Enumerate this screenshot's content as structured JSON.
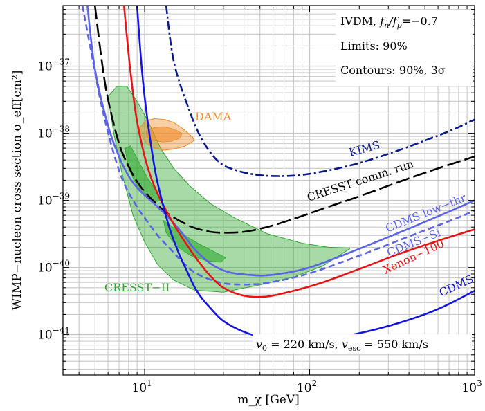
{
  "chart_data": {
    "type": "line",
    "xlabel": "m_χ [GeV]",
    "ylabel": "WIMP−nucleon cross section σ_eff[cm²]",
    "x_scale": "log",
    "y_scale": "log",
    "xlim": [
      3.2,
      1000
    ],
    "ylim": [
      2.5e-42,
      8e-37
    ],
    "grid": true,
    "x_ticks": [
      {
        "v": 10,
        "label": "10"
      },
      {
        "v": 100,
        "label": "10"
      },
      {
        "v": 1000,
        "label": "10"
      }
    ],
    "x_tick_exponents": [
      "1",
      "2",
      "3"
    ],
    "y_ticks": [
      {
        "v": 1e-41,
        "exp": "−41"
      },
      {
        "v": 1e-40,
        "exp": "−40"
      },
      {
        "v": 1e-39,
        "exp": "−39"
      },
      {
        "v": 1e-38,
        "exp": "−38"
      },
      {
        "v": 1e-37,
        "exp": "−37"
      }
    ],
    "y_tick_base": "10",
    "info_box": {
      "line1_prefix": "IVDM, ",
      "line1_ratio": "f",
      "line1_n": "n",
      "line1_slash": "/f",
      "line1_p": "p",
      "line1_value": "=−0.7",
      "line2": "Limits: 90%",
      "line3": "Contours: 90%, 3σ"
    },
    "velocity_note": {
      "v0": "v",
      "v0_sub": "0",
      "v0_val": " = 220 km/s, ",
      "vesc": "v",
      "vesc_sub": "esc",
      "vesc_val": " = 550 km/s"
    },
    "series": [
      {
        "name": "KIMS",
        "color": "#0a1a8c",
        "style": "dashdot",
        "x": [
          13.5,
          15,
          18,
          22,
          28,
          36,
          48,
          65,
          90,
          130,
          200,
          320,
          500,
          750,
          1000
        ],
        "y": [
          8e-37,
          1.2e-37,
          2.8e-38,
          8.5e-39,
          3.8e-39,
          2.8e-39,
          2.4e-39,
          2.3e-39,
          2.4e-39,
          2.8e-39,
          3.6e-39,
          5.2e-39,
          7.8e-39,
          1.15e-38,
          1.6e-38
        ]
      },
      {
        "name": "CRESST comm. run",
        "color": "#000000",
        "style": "longdash",
        "x": [
          5.0,
          5.5,
          6,
          7,
          8,
          9,
          10,
          12,
          14,
          17,
          20,
          25,
          30,
          40,
          55,
          80,
          120,
          200,
          350,
          600,
          1000
        ],
        "y": [
          8e-37,
          1.2e-37,
          3.2e-38,
          7e-39,
          3.2e-39,
          1.9e-39,
          1.35e-39,
          8.5e-40,
          6.2e-40,
          4.7e-40,
          3.9e-40,
          3.4e-40,
          3.3e-40,
          3.4e-40,
          4e-40,
          5.3e-40,
          7.5e-40,
          1.15e-39,
          1.9e-39,
          3e-39,
          4.5e-39
        ]
      },
      {
        "name": "CDMS low−thr",
        "color": "#5a64e6",
        "style": "solid",
        "x": [
          4.5,
          5,
          6,
          7,
          8,
          9,
          10,
          12,
          14,
          17,
          20,
          25,
          32,
          45,
          60,
          100,
          200,
          400,
          700,
          1000
        ],
        "y": [
          8e-37,
          9e-38,
          1.3e-38,
          4.5e-39,
          2.3e-39,
          1.55e-39,
          1.2e-39,
          8e-40,
          5.5e-40,
          3.2e-40,
          1.9e-40,
          1.15e-40,
          8.6e-41,
          7.7e-41,
          7.8e-41,
          1e-40,
          1.9e-40,
          3.8e-40,
          6.8e-40,
          1e-39
        ]
      },
      {
        "name": "CDMS−Si",
        "color": "#5a64e6",
        "style": "dashed",
        "x": [
          4.2,
          4.8,
          5.5,
          6.5,
          7.5,
          9,
          10,
          12,
          14,
          17,
          20,
          25,
          32,
          45,
          60,
          100,
          200,
          400,
          700,
          1000
        ],
        "y": [
          8e-37,
          1.4e-37,
          2.5e-38,
          5e-39,
          1.8e-39,
          8e-40,
          5.5e-40,
          3e-40,
          2e-40,
          1.2e-40,
          8.5e-41,
          6.6e-41,
          5.7e-41,
          5.6e-41,
          6.1e-41,
          8.2e-41,
          1.5e-40,
          2.9e-40,
          4.9e-40,
          7e-40
        ]
      },
      {
        "name": "Xenon−100",
        "color": "#e61414",
        "style": "solid",
        "x": [
          7.5,
          8,
          8.5,
          9,
          10,
          11,
          12,
          14,
          16,
          18,
          20,
          22,
          25,
          30,
          40,
          55,
          80,
          120,
          200,
          350,
          600,
          1000
        ],
        "y": [
          8e-37,
          1.5e-37,
          4e-38,
          1.5e-38,
          4.5e-39,
          2.1e-39,
          1.25e-39,
          6e-40,
          3.4e-40,
          2.2e-40,
          1.5e-40,
          1.1e-40,
          7.5e-41,
          5e-41,
          3.8e-41,
          3.7e-41,
          4.5e-41,
          6e-41,
          9.5e-41,
          1.6e-40,
          2.5e-40,
          3.7e-40
        ]
      },
      {
        "name": "CDMS",
        "color": "#1414e0",
        "style": "solid",
        "x": [
          9.0,
          9.5,
          10,
          11,
          12,
          14,
          16,
          18,
          20,
          22,
          25,
          30,
          40,
          55,
          80,
          120,
          200,
          350,
          600,
          1000
        ],
        "y": [
          8e-37,
          1.3e-37,
          3.5e-38,
          6e-39,
          1.8e-39,
          4.2e-40,
          1.7e-40,
          9e-41,
          5.2e-41,
          3.6e-41,
          2.5e-41,
          1.6e-41,
          1.1e-41,
          8.8e-42,
          8e-42,
          8.5e-42,
          1.05e-41,
          1.5e-41,
          2.4e-41,
          4.5e-41
        ]
      }
    ],
    "regions": [
      {
        "name": "CRESST−II",
        "color": "#2ea82e",
        "outer": {
          "x": [
            6.0,
            6.8,
            7.8,
            9,
            10.5,
            12.5,
            15,
            19,
            25,
            35,
            55,
            90,
            130,
            175,
            175,
            120,
            80,
            50,
            30,
            20,
            15,
            12,
            10,
            8.5,
            7.3,
            6.5,
            6.0
          ],
          "y": [
            3.5e-38,
            5e-38,
            5e-38,
            3e-38,
            1.5e-38,
            6e-39,
            3e-39,
            1.6e-39,
            9e-40,
            5.5e-40,
            3.2e-40,
            2.3e-40,
            2e-40,
            1.95e-40,
            1.9e-40,
            1.05e-40,
            7.2e-41,
            5.5e-41,
            4.3e-41,
            4.6e-41,
            6.5e-41,
            1.1e-40,
            2.4e-40,
            6e-40,
            2.5e-39,
            1e-38,
            3.5e-38
          ]
        },
        "inner": [
          {
            "x": [
              7.6,
              8.2,
              9.2,
              10.6,
              12,
              12.5,
              11.5,
              10,
              8.8,
              8,
              7.6
            ],
            "y": [
              6e-39,
              6.5e-39,
              3.8e-39,
              2e-39,
              1.3e-39,
              1e-39,
              9.5e-40,
              1.15e-39,
              1.8e-39,
              3e-39,
              6e-39
            ]
          },
          {
            "x": [
              13,
              15,
              17.5,
              21,
              26,
              31,
              29,
              24,
              19,
              15.5,
              13.5,
              13
            ],
            "y": [
              5e-40,
              3.9e-40,
              3e-40,
              2.3e-40,
              1.75e-40,
              1.4e-40,
              1.2e-40,
              1.25e-40,
              1.5e-40,
              2.1e-40,
              3.3e-40,
              5e-40
            ]
          }
        ]
      },
      {
        "name": "DAMA",
        "color": "#f08c28",
        "outer": {
          "x": [
            9.3,
            10.2,
            11.5,
            13.2,
            15,
            17.2,
            19.5,
            20,
            17.5,
            15,
            13,
            11.5,
            10.3,
            9.5,
            9.3
          ],
          "y": [
            1.2e-38,
            1.55e-38,
            1.65e-38,
            1.6e-38,
            1.45e-38,
            1.15e-38,
            8.8e-39,
            7.8e-39,
            6.4e-39,
            5.8e-39,
            5.6e-39,
            6e-39,
            7e-39,
            9.5e-39,
            1.2e-38
          ]
        },
        "inner": [
          {
            "x": [
              10.2,
              11.5,
              13.2,
              15,
              16.8,
              16.5,
              14.5,
              12.8,
              11.3,
              10.3,
              10.2
            ],
            "y": [
              1.08e-38,
              1.22e-38,
              1.25e-38,
              1.15e-38,
              1e-38,
              8.5e-39,
              7.6e-39,
              7.4e-39,
              7.8e-39,
              8.8e-39,
              1.08e-38
            ]
          }
        ]
      }
    ],
    "labels": [
      {
        "text": "DAMA",
        "color": "#f08c28"
      },
      {
        "text": "KIMS",
        "color": "#0a1a8c"
      },
      {
        "text": "CRESST comm. run",
        "color": "#000000"
      },
      {
        "text": "CDMS low−thr",
        "color": "#5a64e6"
      },
      {
        "text": "CDMS−Si",
        "color": "#5a64e6"
      },
      {
        "text": "Xenon−100",
        "color": "#e61414"
      },
      {
        "text": "CDMS",
        "color": "#1414e0"
      },
      {
        "text": "CRESST−II",
        "color": "#2ea82e"
      }
    ]
  }
}
